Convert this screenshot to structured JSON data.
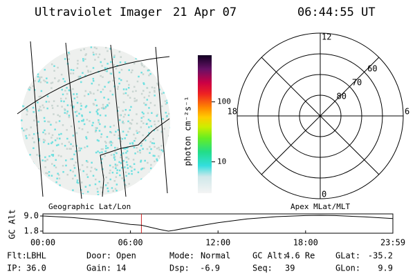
{
  "header": {
    "title": "Ultraviolet Imager",
    "date": "21 Apr 07",
    "time": "06:44:55 UT"
  },
  "colorbar": {
    "label": "photon cm⁻²s⁻¹",
    "log": true,
    "lim": [
      3,
      600
    ],
    "ticks": [
      10,
      100
    ]
  },
  "polar": {
    "lat_lim": [
      50,
      90
    ],
    "lat_rings": [
      60,
      70,
      80
    ],
    "hour_labels": [
      12,
      18,
      6,
      0
    ]
  },
  "altitude": {
    "left_label": "Geographic Lat/Lon",
    "right_label": "Apex MLat/MLT",
    "ylabel": "GC Alt",
    "xlim": [
      0,
      23.98
    ],
    "ylim": [
      0.8,
      10
    ],
    "xticks": [
      {
        "value": 0,
        "label": "00:00"
      },
      {
        "value": 6,
        "label": "06:00"
      },
      {
        "value": 12,
        "label": "12:00"
      },
      {
        "value": 18,
        "label": "18:00"
      },
      {
        "value": 23.98,
        "label": "23:59"
      }
    ],
    "yticks": [
      {
        "value": 9,
        "label": "9.0"
      },
      {
        "value": 1.8,
        "label": "1.8"
      }
    ],
    "x": [
      0,
      2,
      4,
      6,
      6.75,
      8,
      8.6,
      9,
      10,
      12,
      14,
      16,
      18,
      19,
      20,
      22,
      23.98
    ],
    "values": [
      9.0,
      8.3,
      7.0,
      5.0,
      4.6,
      2.6,
      1.8,
      2.2,
      3.5,
      5.8,
      7.6,
      8.7,
      9.2,
      9.3,
      9.2,
      8.6,
      7.8
    ],
    "now": 6.75,
    "now_color": "#cc2222"
  },
  "footer": [
    [
      {
        "label": "Flt:",
        "value": "LBHL"
      },
      {
        "label": "Door:",
        "value": "Open"
      },
      {
        "label": "Mode:",
        "value": "Normal"
      },
      {
        "label": "GC Alt:",
        "value": "4.6 Re"
      },
      {
        "label": "GLat:",
        "value": "-35.2"
      }
    ],
    [
      {
        "label": "IP:",
        "value": "36.0"
      },
      {
        "label": "Gain:",
        "value": "14"
      },
      {
        "label": "Dsp:",
        "value": "-6.9"
      },
      {
        "label": "Seq:",
        "value": "39"
      },
      {
        "label": "GLon:",
        "value": "9.9"
      }
    ]
  ]
}
